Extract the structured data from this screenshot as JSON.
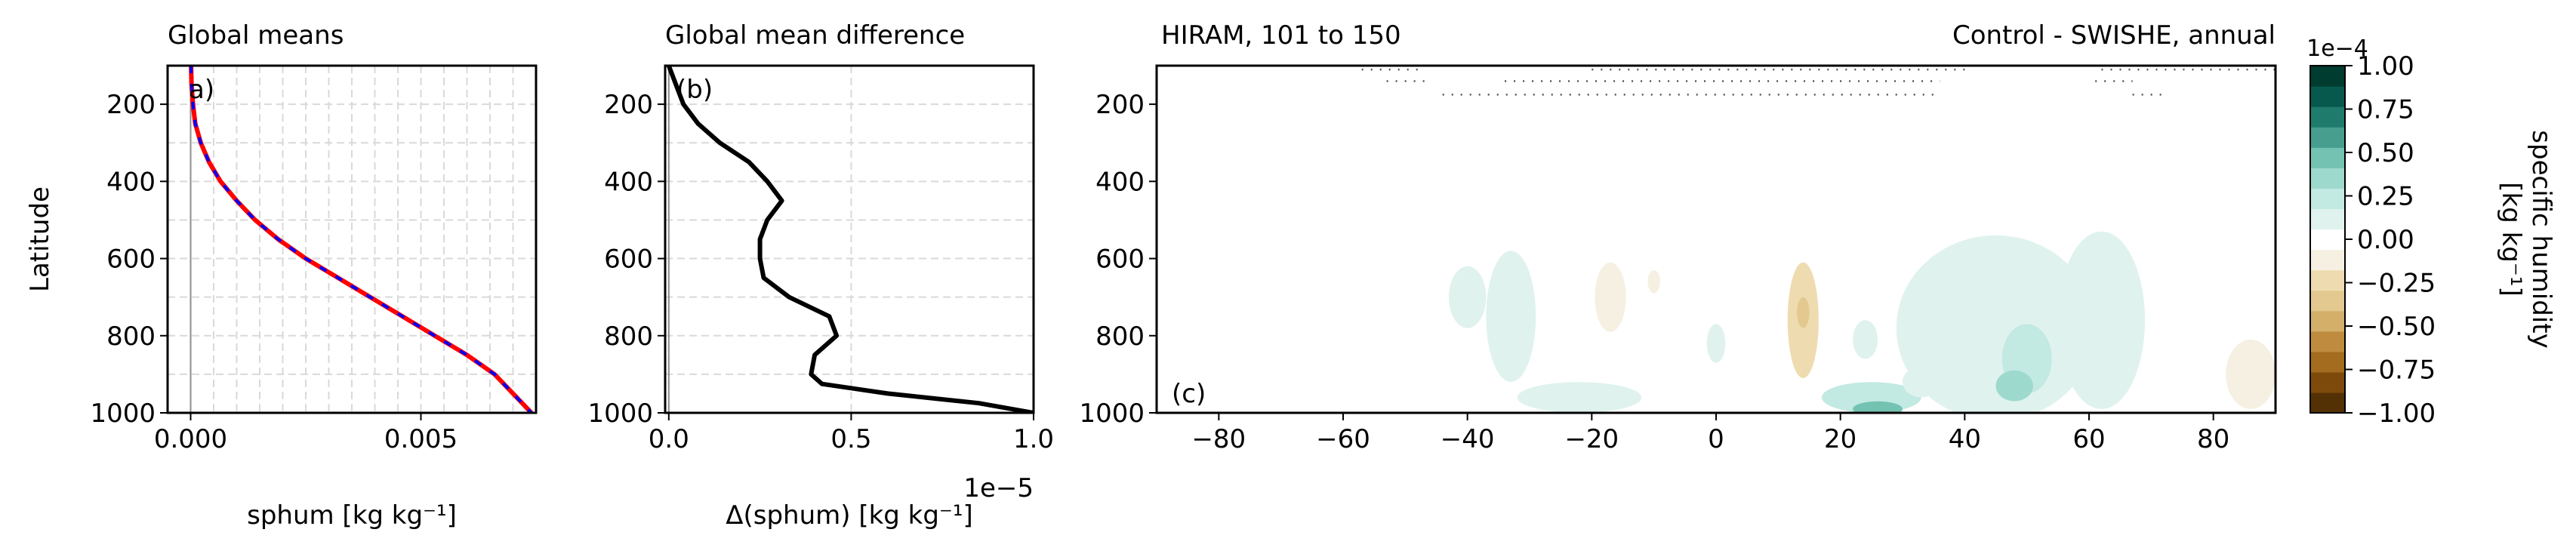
{
  "chart_data": [
    {
      "panel": "a",
      "type": "line",
      "title": "Global means",
      "panel_label": "a)",
      "xlabel": "sphum [kg kg⁻¹]",
      "ylabel": "Latitude",
      "xlim": [
        -0.0005,
        0.0075
      ],
      "ylim": [
        1000,
        100
      ],
      "xticks": [
        0.0,
        0.005
      ],
      "xtick_labels": [
        "0.000",
        "0.005"
      ],
      "yticks": [
        200,
        400,
        600,
        800,
        1000
      ],
      "ytick_labels": [
        "200",
        "400",
        "600",
        "800",
        "1000"
      ],
      "grid": true,
      "y": [
        100,
        150,
        200,
        250,
        300,
        350,
        400,
        450,
        500,
        550,
        600,
        650,
        700,
        750,
        800,
        850,
        900,
        950,
        975,
        1000
      ],
      "series": [
        {
          "color": "#ff0000",
          "style": "solid",
          "values": [
            1e-05,
            2e-05,
            5e-05,
            0.0001,
            0.00022,
            0.0004,
            0.00065,
            0.001,
            0.0014,
            0.0019,
            0.0025,
            0.0032,
            0.0039,
            0.0046,
            0.0053,
            0.006,
            0.0066,
            0.007,
            0.0072,
            0.0074
          ]
        },
        {
          "color": "#0000ff",
          "style": "dashed",
          "values": [
            1e-05,
            2e-05,
            5e-05,
            0.0001,
            0.00022,
            0.0004,
            0.00065,
            0.001,
            0.0014,
            0.0019,
            0.0025,
            0.0032,
            0.0039,
            0.0046,
            0.0053,
            0.006,
            0.0066,
            0.007,
            0.0072,
            0.0074
          ]
        }
      ]
    },
    {
      "panel": "b",
      "type": "line",
      "title": "Global mean difference",
      "panel_label": "(b)",
      "xlabel": "Δ(sphum) [kg kg⁻¹]",
      "offset_text": "1e−5",
      "xlim": [
        -1e-07,
        1e-05
      ],
      "ylim": [
        1000,
        100
      ],
      "xticks": [
        0.0,
        5e-06,
        1e-05
      ],
      "xtick_labels": [
        "0.0",
        "0.5",
        "1.0"
      ],
      "yticks": [
        200,
        400,
        600,
        800,
        1000
      ],
      "ytick_labels": [
        "200",
        "400",
        "600",
        "800",
        "1000"
      ],
      "grid": true,
      "y": [
        100,
        150,
        200,
        250,
        300,
        350,
        400,
        450,
        500,
        550,
        600,
        650,
        700,
        750,
        800,
        850,
        900,
        925,
        950,
        975,
        1000
      ],
      "series": [
        {
          "color": "#000000",
          "style": "solid",
          "values": [
            0.0,
            2e-07,
            4e-07,
            8e-07,
            1.4e-06,
            2.2e-06,
            2.7e-06,
            3.1e-06,
            2.7e-06,
            2.5e-06,
            2.5e-06,
            2.6e-06,
            3.3e-06,
            4.4e-06,
            4.6e-06,
            4e-06,
            3.9e-06,
            4.2e-06,
            6e-06,
            8.5e-06,
            1e-05
          ]
        }
      ]
    },
    {
      "panel": "c",
      "type": "heatmap",
      "title": "HIRAM, 101 to 150",
      "title_right": "Control - SWISHE, annual",
      "panel_label": "(c)",
      "xlim": [
        -90,
        90
      ],
      "ylim": [
        1000,
        100
      ],
      "xticks": [
        -80,
        -60,
        -40,
        -20,
        0,
        20,
        40,
        60,
        80
      ],
      "xtick_labels": [
        "−80",
        "−60",
        "−40",
        "−20",
        "0",
        "20",
        "40",
        "60",
        "80"
      ],
      "yticks": [
        200,
        400,
        600,
        800,
        1000
      ],
      "ytick_labels": [
        "200",
        "400",
        "600",
        "800",
        "1000"
      ],
      "anomalies": [
        {
          "x": 45,
          "y": 780,
          "wx": 16,
          "wy": 240,
          "value": 0.15
        },
        {
          "x": 62,
          "y": 760,
          "wx": 7,
          "wy": 230,
          "value": 0.12
        },
        {
          "x": 50,
          "y": 860,
          "wx": 4,
          "wy": 90,
          "value": 0.3
        },
        {
          "x": 48,
          "y": 930,
          "wx": 3,
          "wy": 40,
          "value": 0.4
        },
        {
          "x": -33,
          "y": 750,
          "wx": 4,
          "wy": 170,
          "value": 0.12
        },
        {
          "x": -40,
          "y": 700,
          "wx": 3,
          "wy": 80,
          "value": 0.1
        },
        {
          "x": -22,
          "y": 960,
          "wx": 10,
          "wy": 40,
          "value": 0.1
        },
        {
          "x": 25,
          "y": 960,
          "wx": 8,
          "wy": 40,
          "value": 0.25
        },
        {
          "x": 26,
          "y": 990,
          "wx": 4,
          "wy": 20,
          "value": 0.45
        },
        {
          "x": 24,
          "y": 810,
          "wx": 2,
          "wy": 50,
          "value": 0.12
        },
        {
          "x": 33,
          "y": 920,
          "wx": 3,
          "wy": 40,
          "value": 0.1
        },
        {
          "x": 0,
          "y": 820,
          "wx": 1.5,
          "wy": 50,
          "value": 0.1
        },
        {
          "x": -17,
          "y": 700,
          "wx": 2.5,
          "wy": 90,
          "value": -0.15
        },
        {
          "x": 14,
          "y": 760,
          "wx": 2.5,
          "wy": 150,
          "value": -0.2
        },
        {
          "x": 14,
          "y": 740,
          "wx": 1,
          "wy": 40,
          "value": -0.35
        },
        {
          "x": -10,
          "y": 660,
          "wx": 1,
          "wy": 30,
          "value": -0.1
        },
        {
          "x": 86,
          "y": 900,
          "wx": 4,
          "wy": 90,
          "value": -0.12
        },
        {
          "x": -13,
          "y": 860,
          "wx": 0.7,
          "wy": 10,
          "value": -0.05
        }
      ],
      "stipple_rows": [
        {
          "y": 110,
          "segments": [
            [
              -57,
              -47
            ],
            [
              -20,
              40
            ],
            [
              62,
              90
            ]
          ]
        },
        {
          "y": 140,
          "segments": [
            [
              -53,
              -46
            ],
            [
              -34,
              36
            ],
            [
              61,
              67
            ]
          ]
        },
        {
          "y": 175,
          "segments": [
            [
              -44,
              36
            ],
            [
              67,
              72
            ]
          ]
        }
      ]
    }
  ],
  "colorbar": {
    "label_line1": "specific humidity",
    "label_line2": "[kg kg⁻¹]",
    "offset_text": "1e−4",
    "levels": [
      -1.0,
      -0.875,
      -0.75,
      -0.625,
      -0.5,
      -0.375,
      -0.25,
      -0.125,
      0.0,
      0.125,
      0.25,
      0.375,
      0.5,
      0.625,
      0.75,
      0.875,
      1.0
    ],
    "colors": [
      "#543005",
      "#7d4a0b",
      "#a36c1e",
      "#bf8b3e",
      "#d3af6a",
      "#e3c98f",
      "#eedcb0",
      "#f5f0e2",
      "#ffffff",
      "#dff2ee",
      "#c2e9e2",
      "#9ed9cd",
      "#73c2b2",
      "#479e8e",
      "#1f7b6c",
      "#08594d",
      "#003c30"
    ],
    "ticks": [
      -1.0,
      -0.75,
      -0.5,
      -0.25,
      0.0,
      0.25,
      0.5,
      0.75,
      1.0
    ],
    "tick_labels": [
      "−1.00",
      "−0.75",
      "−0.50",
      "−0.25",
      "0.00",
      "0.25",
      "0.50",
      "0.75",
      "1.00"
    ]
  }
}
